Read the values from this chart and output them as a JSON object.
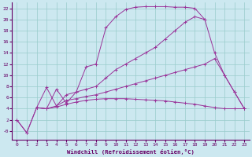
{
  "xlabel": "Windchill (Refroidissement éolien,°C)",
  "xlim": [
    -0.5,
    23.5
  ],
  "ylim": [
    -1.5,
    23
  ],
  "xticks": [
    0,
    1,
    2,
    3,
    4,
    5,
    6,
    7,
    8,
    9,
    10,
    11,
    12,
    13,
    14,
    15,
    16,
    17,
    18,
    19,
    20,
    21,
    22,
    23
  ],
  "yticks": [
    0,
    2,
    4,
    6,
    8,
    10,
    12,
    14,
    16,
    18,
    20,
    22
  ],
  "ytick_labels": [
    "-0",
    "2",
    "4",
    "6",
    "8",
    "10",
    "12",
    "14",
    "16",
    "18",
    "20",
    "22"
  ],
  "bg_color": "#cce8f0",
  "line_color": "#993399",
  "grid_color": "#99cccc",
  "curve1_x": [
    0,
    1,
    2,
    3,
    4,
    5,
    6,
    7,
    8,
    9,
    10,
    11,
    12,
    13,
    14,
    15,
    16,
    17,
    18,
    19
  ],
  "curve1_y": [
    2,
    -0.3,
    4.2,
    4.0,
    7.5,
    5.0,
    7.0,
    11.5,
    12.0,
    18.5,
    20.5,
    21.8,
    22.2,
    22.3,
    22.3,
    22.3,
    22.2,
    22.2,
    22.0,
    20.0
  ],
  "curve2_x": [
    2,
    3,
    4,
    5,
    6,
    7,
    8,
    9,
    10,
    11,
    12,
    13,
    14,
    15,
    16,
    17,
    18,
    19,
    20,
    21,
    22,
    23
  ],
  "curve2_y": [
    4.2,
    7.8,
    4.5,
    6.5,
    7.0,
    7.5,
    8.0,
    9.5,
    11.0,
    12.0,
    13.0,
    14.0,
    15.0,
    16.5,
    18.0,
    19.5,
    20.5,
    20.0,
    14.0,
    10.0,
    7.0,
    4.0
  ],
  "curve3_x": [
    2,
    3,
    4,
    5,
    6,
    7,
    8,
    9,
    10,
    11,
    12,
    13,
    14,
    15,
    16,
    17,
    18,
    19,
    20,
    21,
    22,
    23
  ],
  "curve3_y": [
    4.2,
    4.0,
    4.5,
    5.5,
    5.8,
    6.2,
    6.5,
    7.0,
    7.5,
    8.0,
    8.5,
    9.0,
    9.5,
    10.0,
    10.5,
    11.0,
    11.5,
    12.0,
    13.0,
    10.0,
    7.0,
    4.0
  ],
  "curve4_x": [
    0,
    1,
    2,
    3,
    4,
    5,
    6,
    7,
    8,
    9,
    10,
    11,
    12,
    13,
    14,
    15,
    16,
    17,
    18,
    19,
    20,
    21,
    22,
    23
  ],
  "curve4_y": [
    2,
    -0.3,
    4.2,
    4.0,
    4.3,
    4.8,
    5.2,
    5.5,
    5.7,
    5.8,
    5.8,
    5.8,
    5.7,
    5.6,
    5.5,
    5.4,
    5.2,
    5.0,
    4.8,
    4.5,
    4.2,
    4.0,
    4.0,
    4.0
  ]
}
